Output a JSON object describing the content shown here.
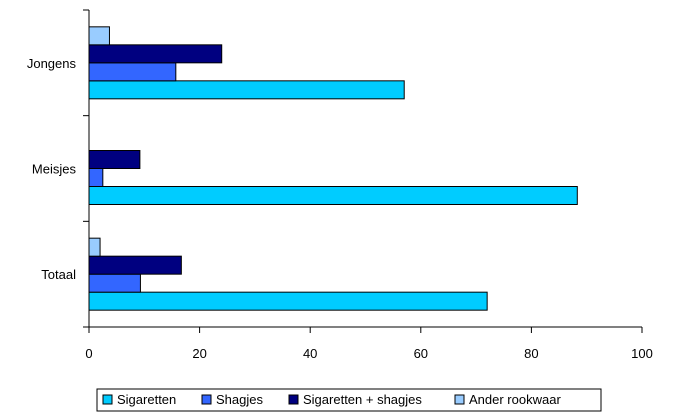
{
  "chart_data": {
    "type": "bar",
    "orientation": "horizontal",
    "categories": [
      "Jongens",
      "Meisjes",
      "Totaal"
    ],
    "series": [
      {
        "name": "Sigaretten",
        "color": "#00CCFF",
        "values": [
          57,
          88.3,
          72
        ]
      },
      {
        "name": "Shagjes",
        "color": "#3366FF",
        "values": [
          15.7,
          2.5,
          9.3
        ]
      },
      {
        "name": "Sigaretten + shagjes",
        "color": "#000080",
        "values": [
          24,
          9.2,
          16.7
        ]
      },
      {
        "name": "Ander rookwaar",
        "color": "#99CCFF",
        "values": [
          3.7,
          0,
          2
        ]
      }
    ],
    "xlim": [
      0,
      100
    ],
    "xticks": [
      "0",
      "20",
      "40",
      "60",
      "80",
      "100"
    ],
    "title": "",
    "xlabel": "",
    "ylabel": "",
    "grid": false,
    "legend_position": "bottom"
  }
}
